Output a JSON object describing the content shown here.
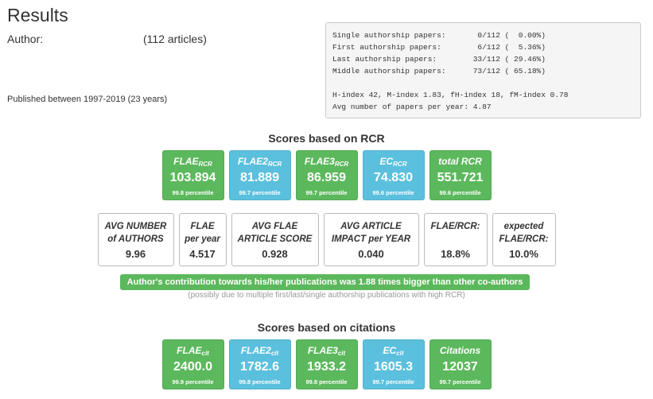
{
  "header": {
    "title": "Results",
    "author_label": "Author:",
    "article_count": "(112 articles)",
    "published": "Published between 1997-2019 (23 years)"
  },
  "stats": {
    "lines": [
      "Single authorship papers:       0/112 (  0.00%)",
      "First authorship papers:        6/112 (  5.36%)",
      "Last authorship papers:        33/112 ( 29.46%)",
      "Middle authorship papers:      73/112 ( 65.18%)"
    ],
    "index_line": "H-index 42, M-index 1.83, fH-index 18, fM-index 0.78",
    "avg_line": "Avg number of papers per year: 4.87"
  },
  "rcr_section": {
    "heading": "Scores based on RCR",
    "scores": [
      {
        "label": "FLAE",
        "sub": "RCR",
        "value": "103.894",
        "percentile": "99.8 percentile",
        "color": "green"
      },
      {
        "label": "FLAE2",
        "sub": "RCR",
        "value": "81.889",
        "percentile": "99.7 percentile",
        "color": "blue"
      },
      {
        "label": "FLAE3",
        "sub": "RCR",
        "value": "86.959",
        "percentile": "99.7 percentile",
        "color": "green"
      },
      {
        "label": "EC",
        "sub": "RCR",
        "value": "74.830",
        "percentile": "99.6 percentile",
        "color": "blue"
      },
      {
        "label": "total RCR",
        "sub": "",
        "value": "551.721",
        "percentile": "99.6 percentile",
        "color": "green"
      }
    ]
  },
  "metrics": [
    {
      "line1": "AVG NUMBER",
      "line2": "of AUTHORS",
      "value": "9.96"
    },
    {
      "line1": "FLAE",
      "line2": "per year",
      "value": "4.517"
    },
    {
      "line1": "AVG FLAE",
      "line2": "ARTICLE SCORE",
      "value": "0.928"
    },
    {
      "line1": "AVG ARTICLE",
      "line2": "IMPACT per YEAR",
      "value": "0.040"
    },
    {
      "line1": "FLAE/RCR:",
      "line2": "",
      "value": "18.8%"
    },
    {
      "line1": "expected",
      "line2": "FLAE/RCR:",
      "value": "10.0%"
    }
  ],
  "contribution": {
    "banner": "Author's contribution towards his/her publications was 1.88 times bigger than other co-authors",
    "note": "(possibly due to multiple first/last/single authorship publications with high RCR)"
  },
  "citations_section": {
    "heading": "Scores based on citations",
    "scores": [
      {
        "label": "FLAE",
        "sub": "cit",
        "value": "2400.0",
        "percentile": "99.9 percentile",
        "color": "green"
      },
      {
        "label": "FLAE2",
        "sub": "cit",
        "value": "1782.6",
        "percentile": "99.8 percentile",
        "color": "blue"
      },
      {
        "label": "FLAE3",
        "sub": "cit",
        "value": "1933.2",
        "percentile": "99.8 percentile",
        "color": "green"
      },
      {
        "label": "EC",
        "sub": "cit",
        "value": "1605.3",
        "percentile": "99.7 percentile",
        "color": "blue"
      },
      {
        "label": "Citations",
        "sub": "",
        "value": "12037",
        "percentile": "99.7 percentile",
        "color": "green"
      }
    ]
  },
  "colors": {
    "green": "#5cb85c",
    "blue": "#5bc0de"
  }
}
